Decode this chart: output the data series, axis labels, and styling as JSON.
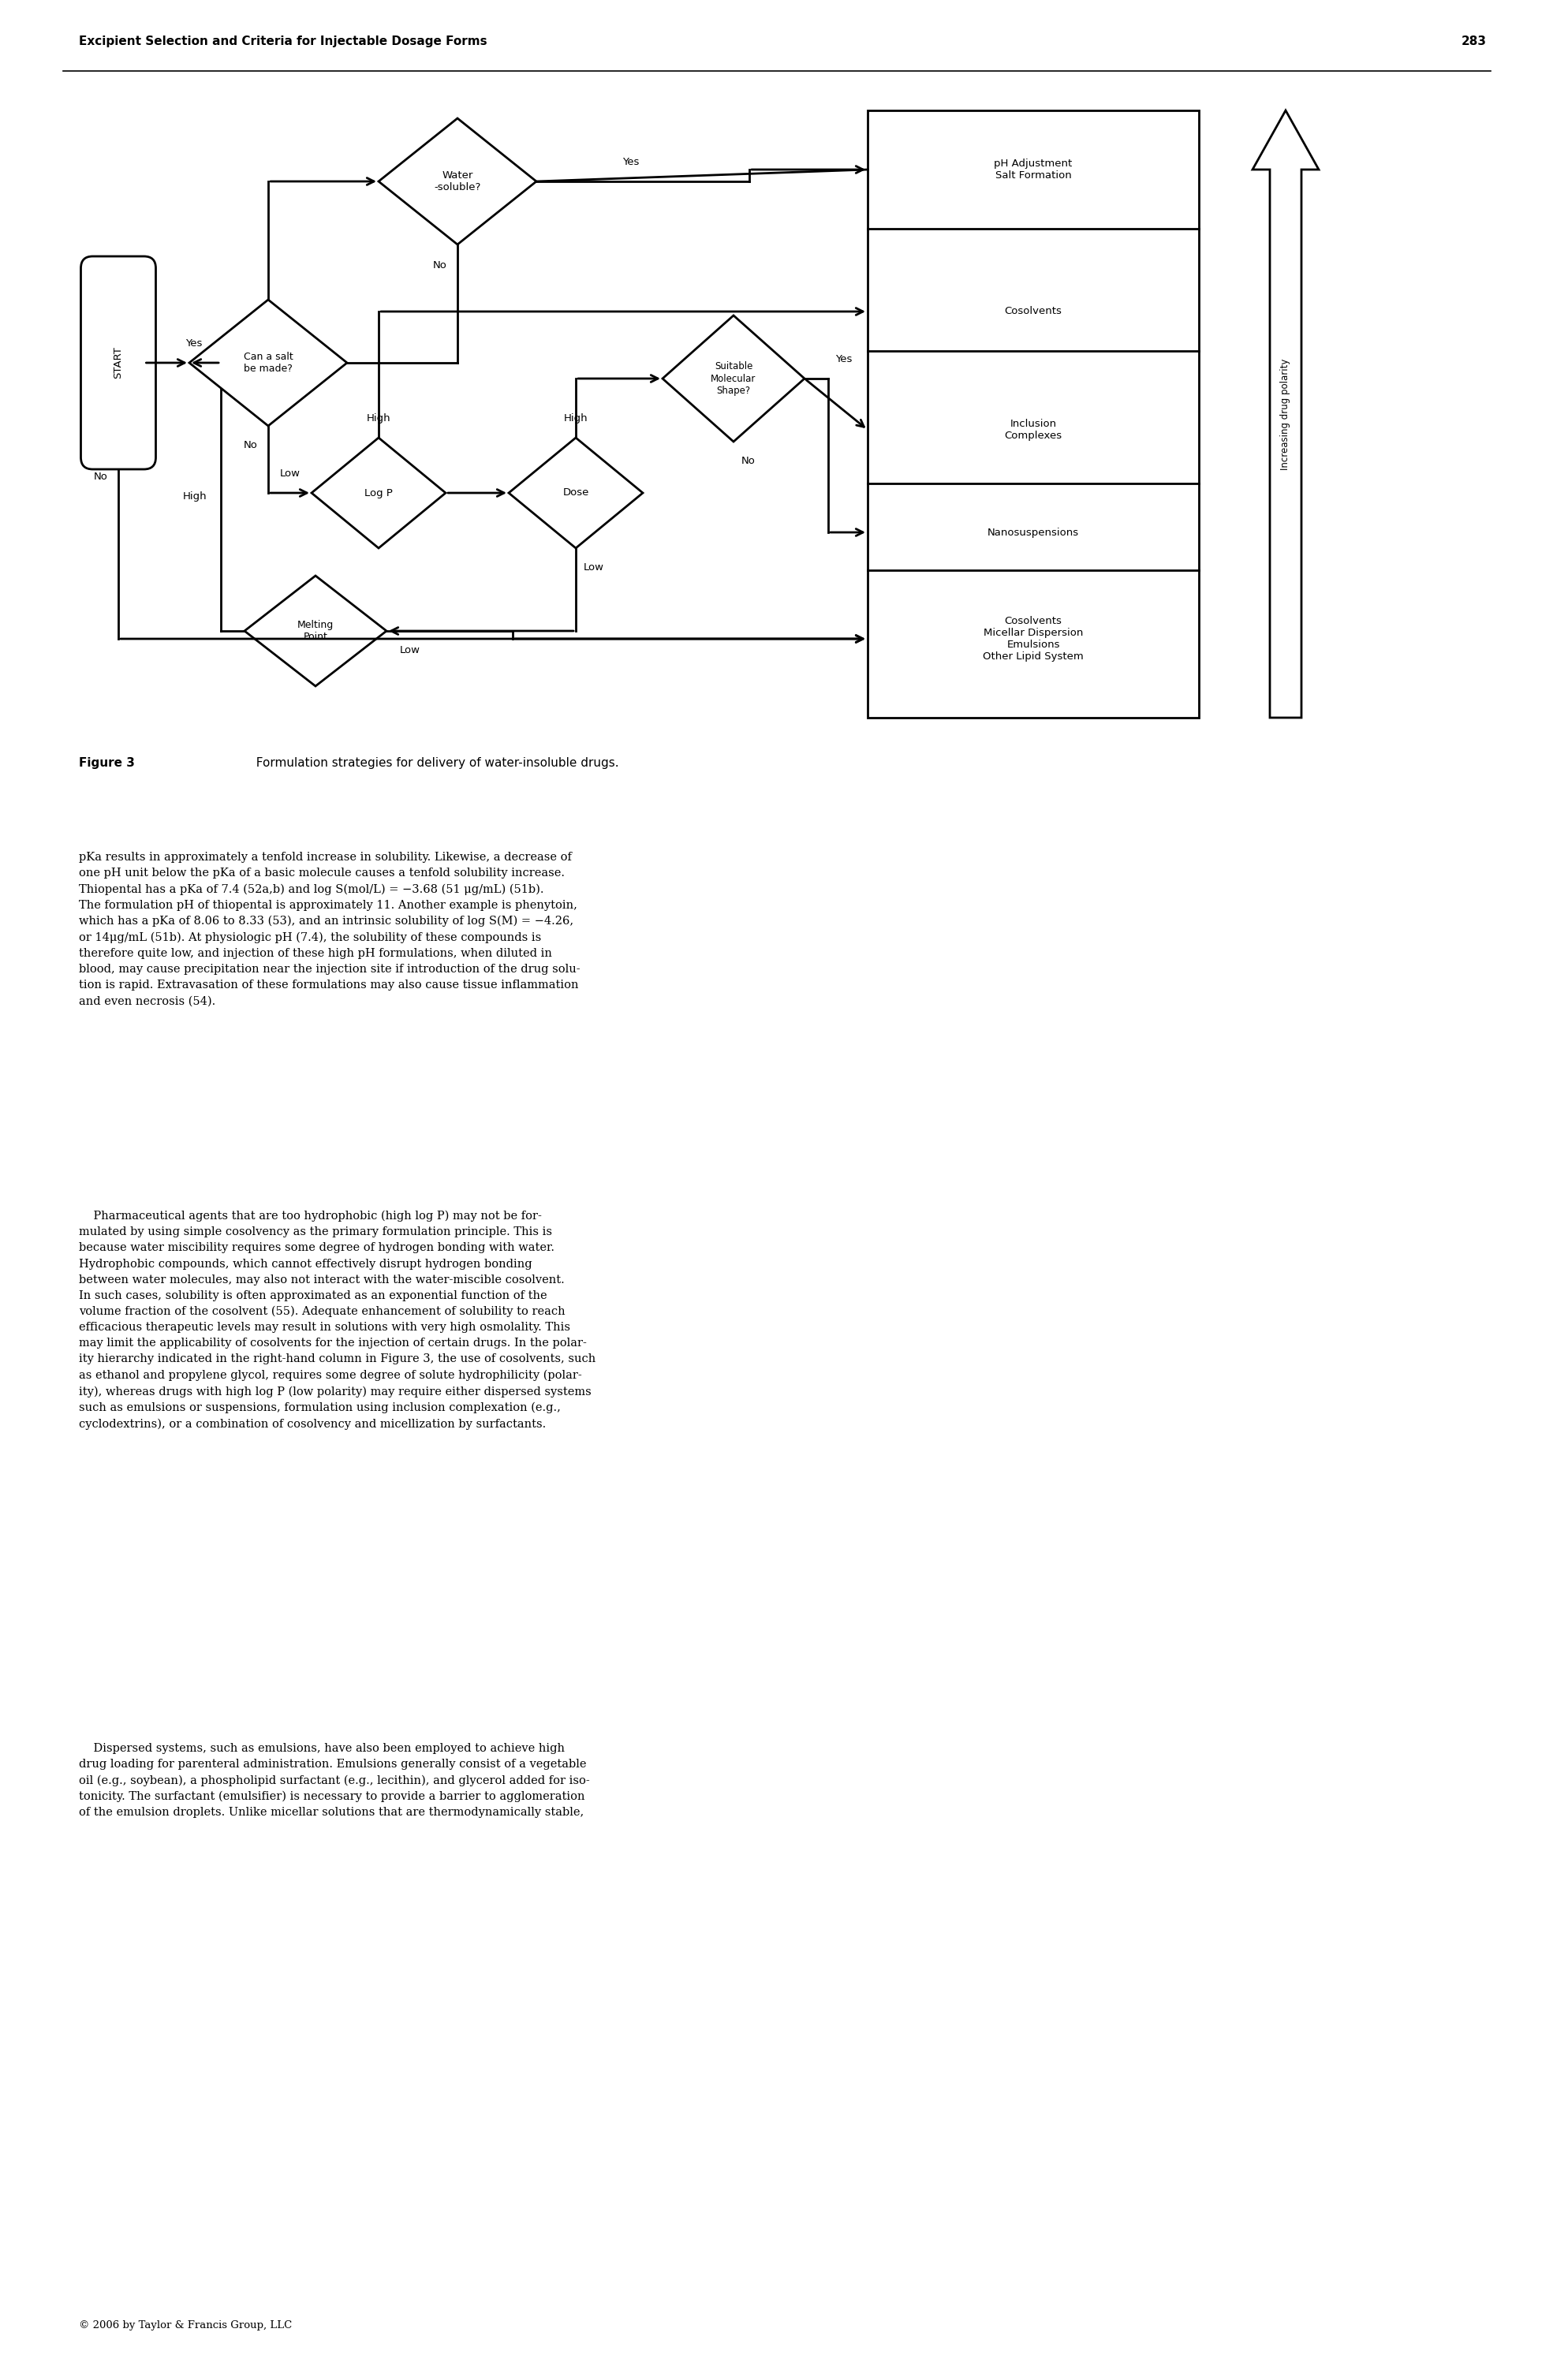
{
  "header_title": "Excipient Selection and Criteria for Injectable Dosage Forms",
  "header_page": "283",
  "figure_caption_bold": "Figure 3",
  "figure_caption_rest": "  Formulation strategies for delivery of water-insoluble drugs.",
  "background_color": "#ffffff",
  "text_color": "#000000",
  "footer": "© 2006 by Taylor & Francis Group, LLC",
  "para1": "pKa results in approximately a tenfold increase in solubility. Likewise, a decrease of\none pH unit below the pKa of a basic molecule causes a tenfold solubility increase.\nThiopental has a pKa of 7.4 (52a,b) and log S(mol/L) = −3.68 (51 μg/mL) (51b).\nThe formulation pH of thiopental is approximately 11. Another example is phenytoin,\nwhich has a pKa of 8.06 to 8.33 (53), and an intrinsic solubility of log S(M) = −4.26,\nor 14μg/mL (51b). At physiologic pH (7.4), the solubility of these compounds is\ntherefore quite low, and injection of these high pH formulations, when diluted in\nblood, may cause precipitation near the injection site if introduction of the drug solu-\ntion is rapid. Extravasation of these formulations may also cause tissue inflammation\nand even necrosis (54).",
  "para2": "    Pharmaceutical agents that are too hydrophobic (high log P) may not be for-\nmulated by using simple cosolvency as the primary formulation principle. This is\nbecause water miscibility requires some degree of hydrogen bonding with water.\nHydrophobic compounds, which cannot effectively disrupt hydrogen bonding\nbetween water molecules, may also not interact with the water-miscible cosolvent.\nIn such cases, solubility is often approximated as an exponential function of the\nvolume fraction of the cosolvent (55). Adequate enhancement of solubility to reach\nefficacious therapeutic levels may result in solutions with very high osmolality. This\nmay limit the applicability of cosolvents for the injection of certain drugs. In the polar-\nity hierarchy indicated in the right-hand column in Figure 3, the use of cosolvents, such\nas ethanol and propylene glycol, requires some degree of solute hydrophilicity (polar-\nity), whereas drugs with high log P (low polarity) may require either dispersed systems\nsuch as emulsions or suspensions, formulation using inclusion complexation (e.g.,\ncyclodextrins), or a combination of cosolvency and micellization by surfactants.",
  "para3": "    Dispersed systems, such as emulsions, have also been employed to achieve high\ndrug loading for parenteral administration. Emulsions generally consist of a vegetable\noil (e.g., soybean), a phospholipid surfactant (e.g., lecithin), and glycerol added for iso-\ntonicity. The surfactant (emulsifier) is necessary to provide a barrier to agglomeration\nof the emulsion droplets. Unlike micellar solutions that are thermodynamically stable,"
}
